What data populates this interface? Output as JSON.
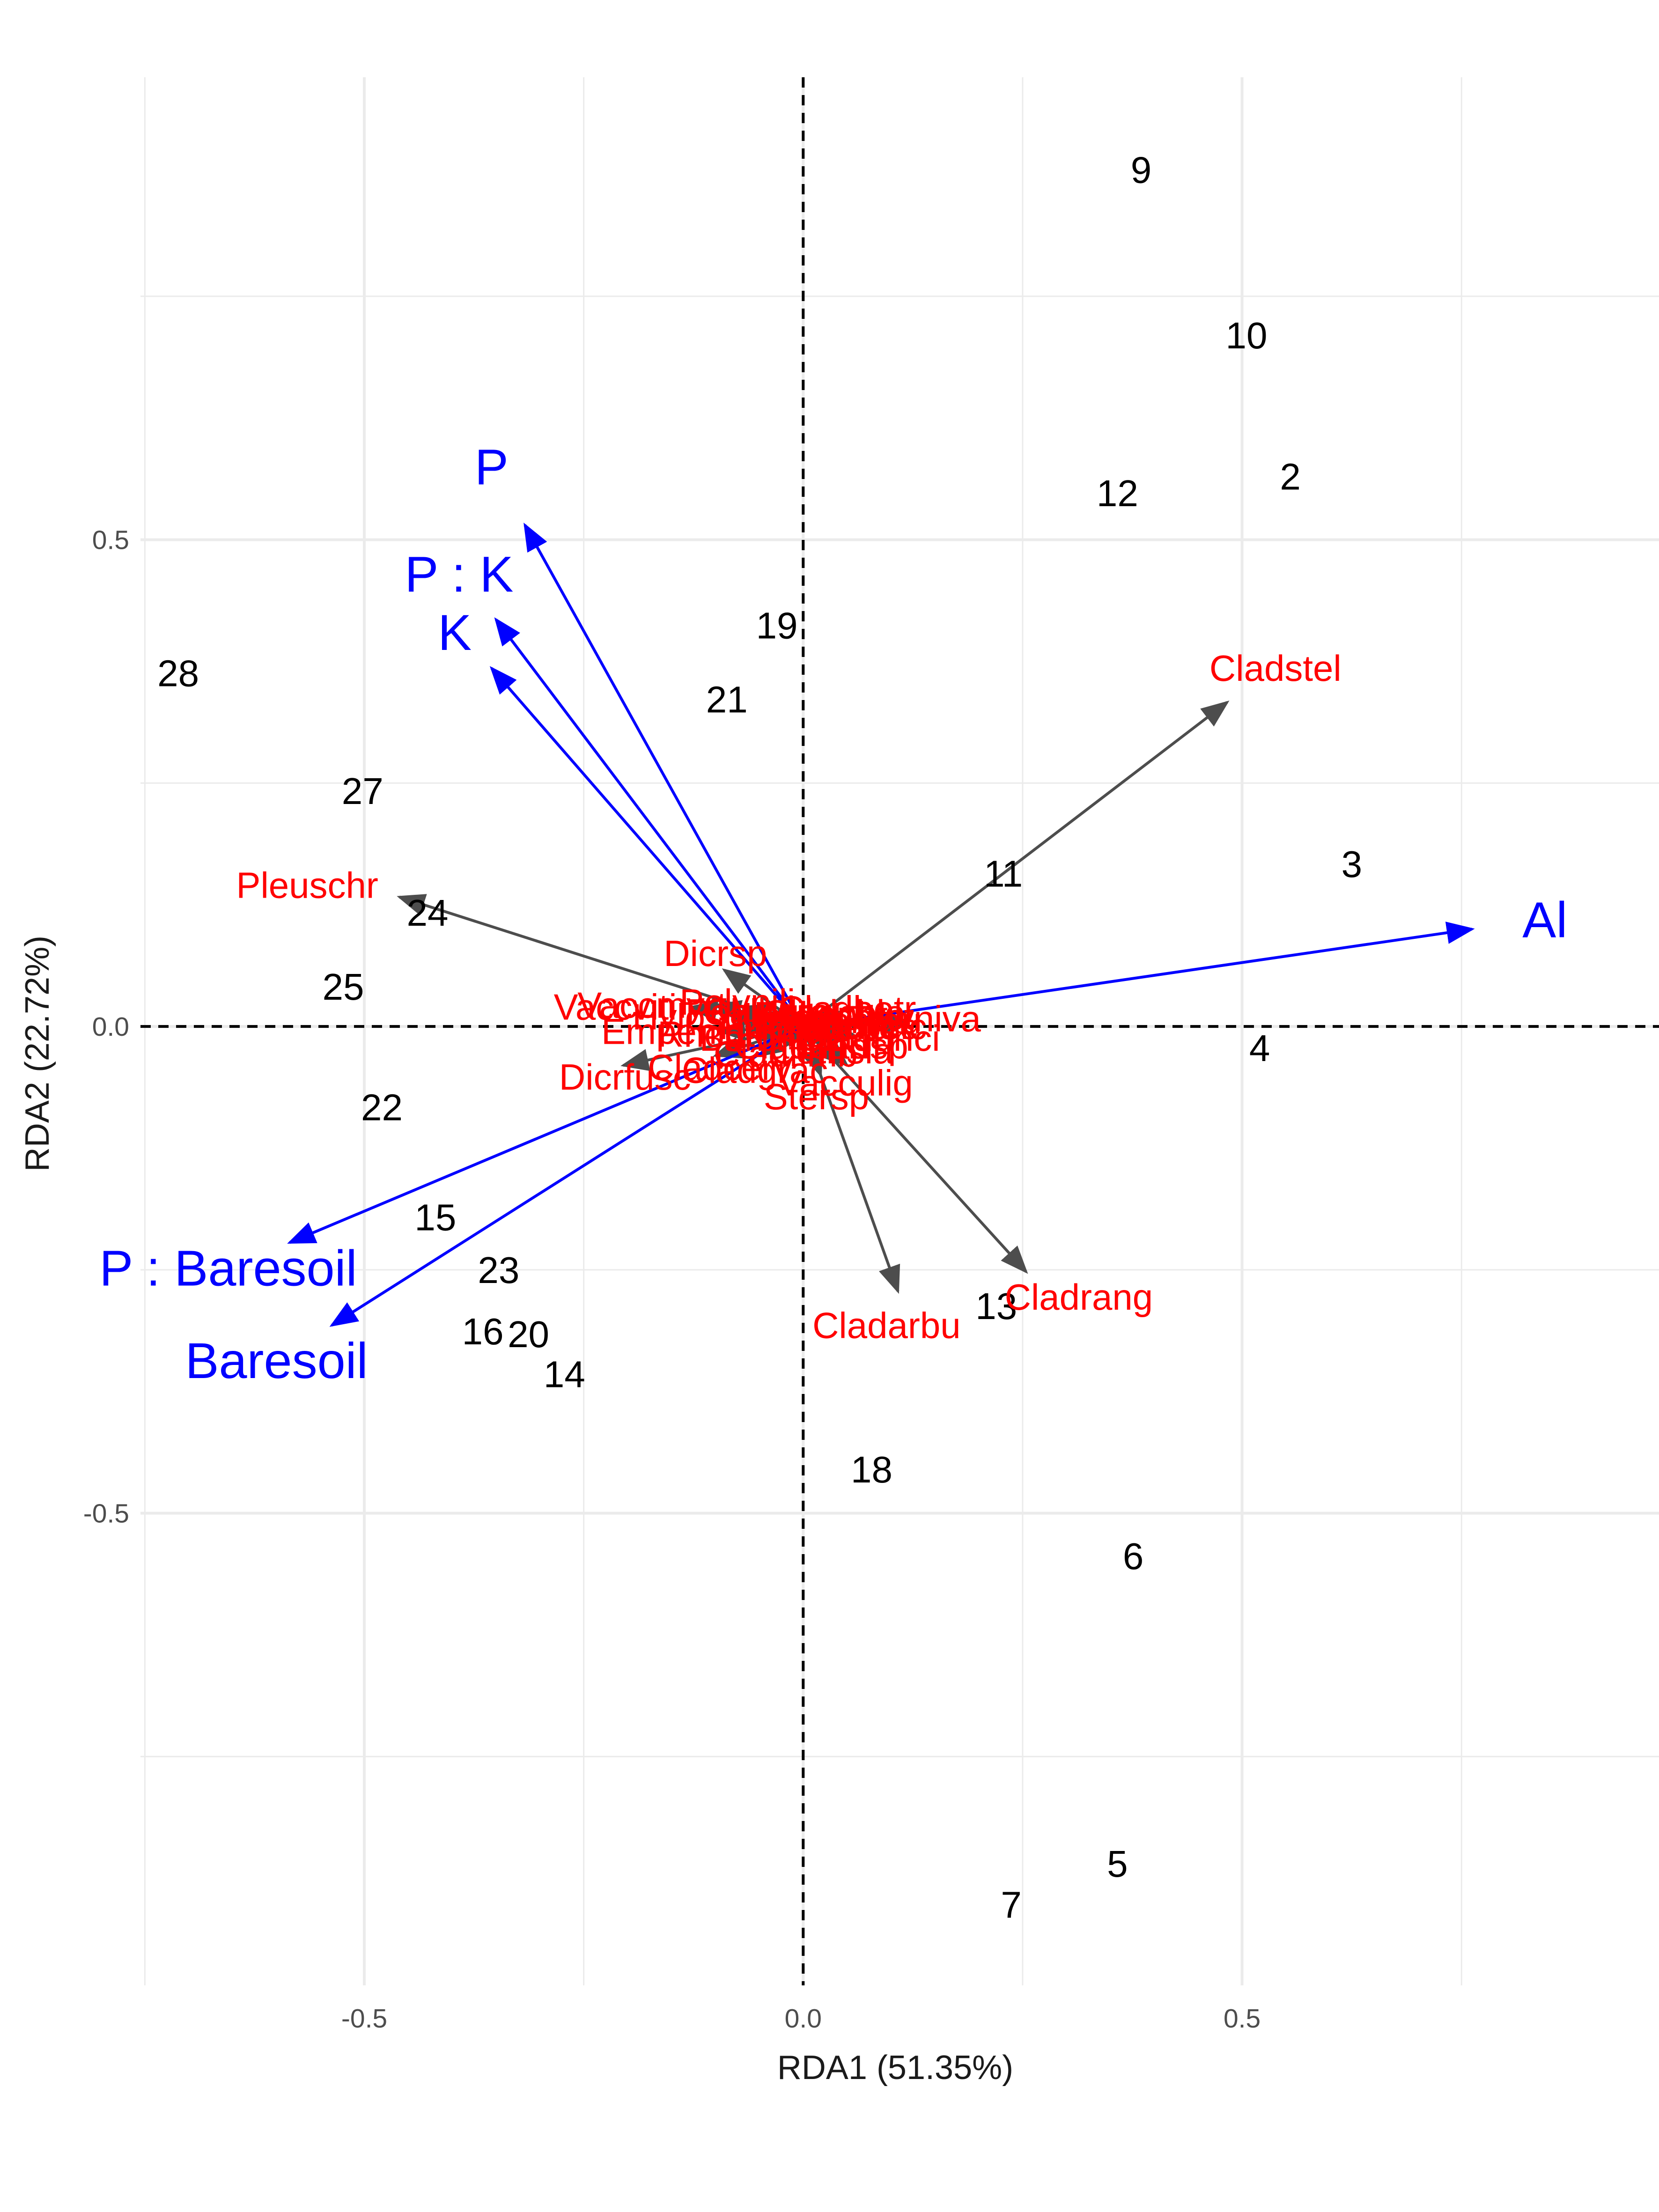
{
  "chart_data": {
    "type": "scatter",
    "xlabel": "RDA1 (51.35%)",
    "ylabel": "RDA2 (22.72%)",
    "xlim": [
      -0.755,
      0.975
    ],
    "ylim": [
      -0.985,
      0.975
    ],
    "x_ticks": [
      -0.5,
      0.0,
      0.5
    ],
    "x_tick_labels": [
      "-0.5",
      "0.0",
      "0.5"
    ],
    "y_ticks": [
      -0.5,
      0.0,
      0.5
    ],
    "y_tick_labels": [
      "-0.5",
      "0.0",
      "0.5"
    ],
    "grid": true,
    "reference_lines": [
      {
        "axis": "x",
        "value": 0,
        "style": "dashed"
      },
      {
        "axis": "y",
        "value": 0,
        "style": "dashed"
      }
    ],
    "colors": {
      "sites": "#000000",
      "species": "#ff0000",
      "species_arrow": "#4d4d4d",
      "env": "#0000ff",
      "grid": "#ebebeb",
      "refline": "#000000"
    },
    "sites": [
      {
        "label": "9",
        "x": 0.385,
        "y": 0.88
      },
      {
        "label": "10",
        "x": 0.505,
        "y": 0.71
      },
      {
        "label": "2",
        "x": 0.555,
        "y": 0.565
      },
      {
        "label": "12",
        "x": 0.358,
        "y": 0.548
      },
      {
        "label": "19",
        "x": -0.03,
        "y": 0.412
      },
      {
        "label": "21",
        "x": -0.087,
        "y": 0.336
      },
      {
        "label": "28",
        "x": -0.712,
        "y": 0.363
      },
      {
        "label": "27",
        "x": -0.502,
        "y": 0.242
      },
      {
        "label": "3",
        "x": 0.625,
        "y": 0.167
      },
      {
        "label": "11",
        "x": 0.228,
        "y": 0.157
      },
      {
        "label": "24",
        "x": -0.428,
        "y": 0.117
      },
      {
        "label": "25",
        "x": -0.524,
        "y": 0.041
      },
      {
        "label": "4",
        "x": 0.52,
        "y": -0.022
      },
      {
        "label": "22",
        "x": -0.48,
        "y": -0.083
      },
      {
        "label": "15",
        "x": -0.419,
        "y": -0.196
      },
      {
        "label": "23",
        "x": -0.347,
        "y": -0.25
      },
      {
        "label": "13",
        "x": 0.22,
        "y": -0.287
      },
      {
        "label": "16",
        "x": -0.365,
        "y": -0.313
      },
      {
        "label": "20",
        "x": -0.313,
        "y": -0.316
      },
      {
        "label": "14",
        "x": -0.272,
        "y": -0.357
      },
      {
        "label": "18",
        "x": 0.078,
        "y": -0.455
      },
      {
        "label": "6",
        "x": 0.376,
        "y": -0.544
      },
      {
        "label": "5",
        "x": 0.358,
        "y": -0.86
      },
      {
        "label": "7",
        "x": 0.237,
        "y": -0.902
      }
    ],
    "species": [
      {
        "label": "Cladstel",
        "x": 0.483,
        "y": 0.333,
        "lx": 0.538,
        "ly": 0.368
      },
      {
        "label": "Pleuschr",
        "x": -0.46,
        "y": 0.133,
        "lx": -0.565,
        "ly": 0.145
      },
      {
        "label": "Cladrang",
        "x": 0.254,
        "y": -0.252,
        "lx": 0.314,
        "ly": -0.278
      },
      {
        "label": "Cladarbu",
        "x": 0.108,
        "y": -0.272,
        "lx": 0.095,
        "ly": -0.307
      },
      {
        "label": "Dicrsp",
        "x": -0.09,
        "y": 0.058,
        "lx": -0.1,
        "ly": 0.075
      },
      {
        "label": "Dicrfusc",
        "x": -0.205,
        "y": -0.04,
        "lx": -0.203,
        "ly": -0.052
      },
      {
        "label": "Vaccviti",
        "x": -0.127,
        "y": 0.02,
        "lx": -0.214,
        "ly": 0.02
      },
      {
        "label": "Vaccmyrt",
        "x": -0.1,
        "y": 0.022,
        "lx": -0.172,
        "ly": 0.022
      },
      {
        "label": "Empenigr",
        "x": -0.095,
        "y": -0.005,
        "lx": -0.141,
        "ly": -0.005
      },
      {
        "label": "Hylosple",
        "x": -0.08,
        "y": 0.01,
        "lx": -0.115,
        "ly": 0.01
      },
      {
        "label": "Polypili",
        "x": -0.07,
        "y": 0.02,
        "lx": -0.075,
        "ly": 0.025
      },
      {
        "label": "Pohlnuta",
        "x": -0.055,
        "y": 0.012,
        "lx": -0.052,
        "ly": 0.015
      },
      {
        "label": "Ptilcili",
        "x": -0.045,
        "y": 0.0,
        "lx": -0.043,
        "ly": 0.0
      },
      {
        "label": "Barbhatc",
        "x": -0.035,
        "y": -0.01,
        "lx": -0.035,
        "ly": -0.012
      },
      {
        "label": "Cladcerv",
        "x": -0.1,
        "y": -0.03,
        "lx": -0.095,
        "ly": -0.042
      },
      {
        "label": "Cladgrac",
        "x": -0.05,
        "y": -0.03,
        "lx": -0.055,
        "ly": -0.045
      },
      {
        "label": "Cladfimb",
        "x": -0.02,
        "y": -0.02,
        "lx": -0.02,
        "ly": -0.028
      },
      {
        "label": "Cladcorn",
        "x": 0.005,
        "y": -0.015,
        "lx": 0.005,
        "ly": -0.02
      },
      {
        "label": "Vacculig",
        "x": 0.05,
        "y": -0.04,
        "lx": 0.048,
        "ly": -0.058
      },
      {
        "label": "Stersp",
        "x": 0.02,
        "y": -0.05,
        "lx": 0.015,
        "ly": -0.072
      },
      {
        "label": "Cladchlo",
        "x": 0.03,
        "y": 0.008,
        "lx": 0.035,
        "ly": 0.014
      },
      {
        "label": "Cladcocc",
        "x": 0.04,
        "y": 0.0,
        "lx": 0.045,
        "ly": 0.0
      },
      {
        "label": "Cladsp",
        "x": 0.045,
        "y": -0.015,
        "lx": 0.055,
        "ly": -0.02
      },
      {
        "label": "Cetrisla",
        "x": 0.025,
        "y": -0.02,
        "lx": 0.032,
        "ly": -0.025
      },
      {
        "label": "Cetreric",
        "x": 0.055,
        "y": 0.0,
        "lx": 0.068,
        "ly": 0.0
      },
      {
        "label": "Flavniva",
        "x": 0.12,
        "y": 0.005,
        "lx": 0.125,
        "ly": 0.008
      },
      {
        "label": "Nepharct",
        "x": 0.03,
        "y": 0.01,
        "lx": 0.042,
        "ly": 0.01
      },
      {
        "label": "Icmaeric",
        "x": 0.02,
        "y": 0.0,
        "lx": 0.028,
        "ly": 0.0
      },
      {
        "label": "Cladunci",
        "x": 0.06,
        "y": -0.01,
        "lx": 0.075,
        "ly": -0.012
      },
      {
        "label": "Cladbotr",
        "x": 0.04,
        "y": 0.015,
        "lx": 0.05,
        "ly": 0.018
      },
      {
        "label": "Cladamau",
        "x": 0.035,
        "y": 0.005,
        "lx": 0.04,
        "ly": 0.006
      },
      {
        "label": "Peltapht",
        "x": 0.015,
        "y": 0.01,
        "lx": 0.02,
        "ly": 0.012
      },
      {
        "label": "Callvulg",
        "x": -0.03,
        "y": 0.012,
        "lx": -0.04,
        "ly": 0.015
      },
      {
        "label": "Rhodtome",
        "x": -0.06,
        "y": -0.005,
        "lx": -0.07,
        "ly": -0.008
      }
    ],
    "env": [
      {
        "label": "Al",
        "x": 0.762,
        "y": 0.1,
        "lx": 0.845,
        "ly": 0.11
      },
      {
        "label": "P",
        "x": -0.317,
        "y": 0.515,
        "lx": -0.355,
        "ly": 0.575
      },
      {
        "label": "P : K",
        "x": -0.35,
        "y": 0.418,
        "lx": -0.392,
        "ly": 0.465
      },
      {
        "label": "K",
        "x": -0.355,
        "y": 0.368,
        "lx": -0.397,
        "ly": 0.405
      },
      {
        "label": "P : Baresoil",
        "x": -0.585,
        "y": -0.222,
        "lx": -0.655,
        "ly": -0.248
      },
      {
        "label": "Baresoil",
        "x": -0.537,
        "y": -0.307,
        "lx": -0.6,
        "ly": -0.343
      }
    ]
  }
}
